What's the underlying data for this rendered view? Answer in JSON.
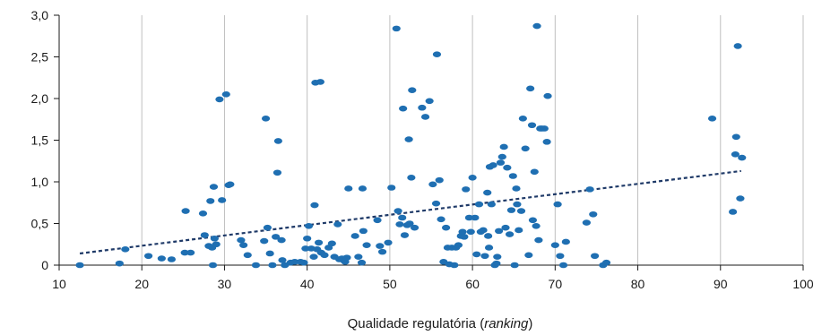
{
  "chart_data": {
    "type": "scatter",
    "xlabel": "Qualidade regulatória",
    "xlabel_emphasis": "ranking",
    "xlabel_full": "Qualidade regulatória (ranking)",
    "xlim": [
      10,
      100
    ],
    "ylim": [
      0,
      3
    ],
    "x_ticks": [
      10,
      20,
      30,
      40,
      50,
      60,
      70,
      80,
      90,
      100
    ],
    "y_ticks": [
      0,
      0.5,
      1.0,
      1.5,
      2.0,
      2.5,
      3.0
    ],
    "x_tick_labels": [
      "10",
      "20",
      "30",
      "40",
      "50",
      "60",
      "70",
      "80",
      "90",
      "100"
    ],
    "y_tick_labels": [
      "0",
      "0,5",
      "1,0",
      "1,5",
      "2,0",
      "2,5",
      "3,0"
    ],
    "grid": "vertical",
    "colors": {
      "points": "#1F6FB2",
      "trendline": "#1F3A68",
      "grid": "#BFBFBF",
      "axis": "#1a1a1a"
    },
    "trendline": {
      "x": [
        12.5,
        92.5
      ],
      "y": [
        0.14,
        1.13
      ],
      "style": "dotted"
    },
    "points": [
      [
        12.5,
        0.0
      ],
      [
        17.3,
        0.02
      ],
      [
        18.0,
        0.19
      ],
      [
        20.8,
        0.11
      ],
      [
        22.4,
        0.08
      ],
      [
        23.6,
        0.07
      ],
      [
        25.2,
        0.15
      ],
      [
        25.3,
        0.65
      ],
      [
        25.9,
        0.15
      ],
      [
        27.4,
        0.62
      ],
      [
        27.6,
        0.36
      ],
      [
        28.1,
        0.23
      ],
      [
        28.3,
        0.77
      ],
      [
        28.5,
        0.21
      ],
      [
        28.6,
        0.0
      ],
      [
        28.7,
        0.94
      ],
      [
        28.8,
        0.32
      ],
      [
        29.0,
        0.25
      ],
      [
        29.4,
        1.99
      ],
      [
        29.7,
        0.78
      ],
      [
        30.2,
        2.05
      ],
      [
        30.5,
        0.96
      ],
      [
        30.7,
        0.97
      ],
      [
        32.0,
        0.3
      ],
      [
        32.3,
        0.24
      ],
      [
        32.8,
        0.12
      ],
      [
        33.8,
        0.0
      ],
      [
        34.8,
        0.29
      ],
      [
        35.0,
        1.76
      ],
      [
        35.2,
        0.45
      ],
      [
        35.5,
        0.14
      ],
      [
        35.8,
        0.0
      ],
      [
        36.2,
        0.34
      ],
      [
        36.4,
        1.11
      ],
      [
        36.5,
        1.49
      ],
      [
        36.9,
        0.3
      ],
      [
        37.0,
        0.06
      ],
      [
        37.3,
        0.0
      ],
      [
        38.0,
        0.03
      ],
      [
        38.5,
        0.04
      ],
      [
        39.2,
        0.04
      ],
      [
        39.6,
        0.03
      ],
      [
        39.8,
        0.2
      ],
      [
        40.0,
        0.32
      ],
      [
        40.2,
        0.47
      ],
      [
        40.5,
        0.2
      ],
      [
        40.8,
        0.1
      ],
      [
        40.9,
        0.72
      ],
      [
        41.0,
        2.19
      ],
      [
        41.2,
        0.19
      ],
      [
        41.4,
        0.27
      ],
      [
        41.6,
        2.2
      ],
      [
        41.7,
        0.15
      ],
      [
        42.1,
        0.12
      ],
      [
        42.6,
        0.21
      ],
      [
        43.0,
        0.26
      ],
      [
        43.3,
        0.1
      ],
      [
        43.7,
        0.49
      ],
      [
        43.9,
        0.07
      ],
      [
        44.2,
        0.08
      ],
      [
        44.5,
        0.05
      ],
      [
        44.6,
        0.04
      ],
      [
        44.8,
        0.09
      ],
      [
        45.0,
        0.92
      ],
      [
        45.8,
        0.35
      ],
      [
        46.2,
        0.1
      ],
      [
        46.6,
        0.03
      ],
      [
        46.7,
        0.92
      ],
      [
        46.8,
        0.41
      ],
      [
        47.2,
        0.24
      ],
      [
        48.5,
        0.54
      ],
      [
        48.8,
        0.23
      ],
      [
        49.1,
        0.16
      ],
      [
        49.8,
        0.27
      ],
      [
        50.2,
        0.93
      ],
      [
        50.8,
        2.84
      ],
      [
        51.0,
        0.65
      ],
      [
        51.2,
        0.49
      ],
      [
        51.5,
        0.57
      ],
      [
        51.6,
        1.88
      ],
      [
        51.8,
        0.36
      ],
      [
        52.1,
        0.48
      ],
      [
        52.3,
        1.51
      ],
      [
        52.4,
        0.5
      ],
      [
        52.6,
        1.05
      ],
      [
        52.7,
        2.1
      ],
      [
        53.0,
        0.45
      ],
      [
        53.9,
        1.89
      ],
      [
        54.3,
        1.78
      ],
      [
        54.8,
        1.97
      ],
      [
        55.2,
        0.97
      ],
      [
        55.6,
        0.74
      ],
      [
        55.7,
        2.53
      ],
      [
        56.0,
        1.02
      ],
      [
        56.2,
        0.55
      ],
      [
        56.5,
        0.04
      ],
      [
        56.8,
        0.45
      ],
      [
        57.0,
        0.21
      ],
      [
        57.2,
        0.01
      ],
      [
        57.5,
        0.21
      ],
      [
        57.8,
        0.0
      ],
      [
        58.0,
        0.21
      ],
      [
        58.3,
        0.24
      ],
      [
        58.6,
        0.35
      ],
      [
        58.8,
        0.4
      ],
      [
        59.0,
        0.34
      ],
      [
        59.2,
        0.91
      ],
      [
        59.6,
        0.57
      ],
      [
        59.8,
        0.4
      ],
      [
        60.0,
        1.05
      ],
      [
        60.3,
        0.57
      ],
      [
        60.5,
        0.13
      ],
      [
        60.8,
        0.73
      ],
      [
        61.0,
        0.4
      ],
      [
        61.3,
        0.42
      ],
      [
        61.5,
        0.11
      ],
      [
        61.8,
        0.87
      ],
      [
        61.9,
        0.35
      ],
      [
        62.0,
        0.21
      ],
      [
        62.1,
        1.18
      ],
      [
        62.3,
        0.73
      ],
      [
        62.5,
        1.2
      ],
      [
        62.7,
        0.0
      ],
      [
        62.9,
        0.02
      ],
      [
        63.0,
        0.1
      ],
      [
        63.2,
        0.41
      ],
      [
        63.4,
        1.23
      ],
      [
        63.6,
        1.3
      ],
      [
        63.8,
        1.42
      ],
      [
        64.0,
        0.45
      ],
      [
        64.2,
        1.17
      ],
      [
        64.5,
        0.37
      ],
      [
        64.7,
        0.66
      ],
      [
        64.9,
        1.07
      ],
      [
        65.1,
        0.0
      ],
      [
        65.3,
        0.92
      ],
      [
        65.4,
        0.73
      ],
      [
        65.6,
        0.42
      ],
      [
        65.9,
        0.65
      ],
      [
        66.1,
        1.76
      ],
      [
        66.4,
        1.4
      ],
      [
        66.8,
        0.12
      ],
      [
        67.0,
        2.12
      ],
      [
        67.2,
        1.68
      ],
      [
        67.3,
        0.54
      ],
      [
        67.5,
        1.12
      ],
      [
        67.7,
        0.47
      ],
      [
        67.8,
        2.87
      ],
      [
        68.0,
        0.3
      ],
      [
        68.2,
        1.64
      ],
      [
        68.4,
        1.64
      ],
      [
        68.7,
        1.64
      ],
      [
        69.0,
        1.48
      ],
      [
        69.1,
        2.03
      ],
      [
        70.0,
        0.24
      ],
      [
        70.3,
        0.73
      ],
      [
        70.6,
        0.11
      ],
      [
        71.0,
        0.0
      ],
      [
        71.3,
        0.28
      ],
      [
        73.8,
        0.51
      ],
      [
        74.2,
        0.91
      ],
      [
        74.6,
        0.61
      ],
      [
        74.8,
        0.11
      ],
      [
        75.8,
        0.0
      ],
      [
        76.2,
        0.03
      ],
      [
        89.0,
        1.76
      ],
      [
        91.5,
        0.64
      ],
      [
        91.8,
        1.33
      ],
      [
        91.9,
        1.54
      ],
      [
        92.1,
        2.63
      ],
      [
        92.4,
        0.8
      ],
      [
        92.6,
        1.29
      ]
    ]
  }
}
